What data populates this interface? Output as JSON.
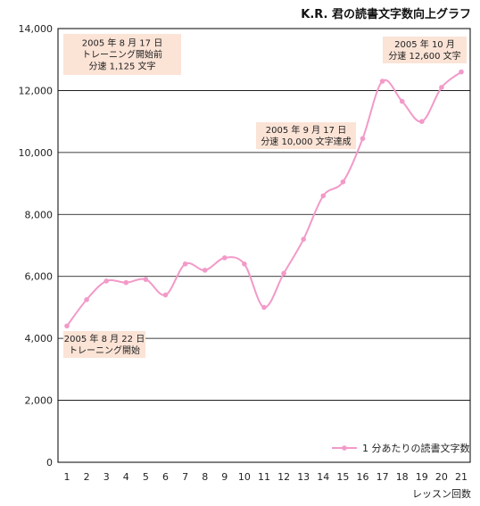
{
  "chart_data": {
    "type": "line",
    "title": "K.R. 君の読書文字数向上グラフ",
    "xlabel": "レッスン回数",
    "ylabel": "",
    "x": [
      1,
      2,
      3,
      4,
      5,
      6,
      7,
      8,
      9,
      10,
      11,
      12,
      13,
      14,
      15,
      16,
      17,
      18,
      19,
      20,
      21
    ],
    "ylim": [
      0,
      14000
    ],
    "yticks": [
      0,
      2000,
      4000,
      6000,
      8000,
      10000,
      12000,
      14000
    ],
    "ytick_labels": [
      "0",
      "2,000",
      "4,000",
      "6,000",
      "8,000",
      "10,000",
      "12,000",
      "14,000"
    ],
    "grid": "horizontal",
    "legend_position": "bottom-right",
    "series": [
      {
        "name": "1 分あたりの読書文字数",
        "color": "#f29ac8",
        "values": [
          4400,
          5250,
          5850,
          5800,
          5900,
          5400,
          6400,
          6200,
          6600,
          6400,
          5000,
          6100,
          7200,
          8600,
          9050,
          10450,
          12300,
          11650,
          11000,
          12100,
          12600
        ]
      }
    ],
    "annotations": [
      {
        "lines": [
          "2005 年 8 月 17 日",
          "トレーニング開始前",
          "分速 1,125 文字"
        ]
      },
      {
        "lines": [
          "2005 年 8 月 22 日",
          "トレーニング開始"
        ]
      },
      {
        "lines": [
          "2005 年 9 月 17 日",
          "分速 10,000 文字達成"
        ]
      },
      {
        "lines": [
          "2005 年 10 月",
          "分速 12,600 文字"
        ]
      }
    ]
  }
}
